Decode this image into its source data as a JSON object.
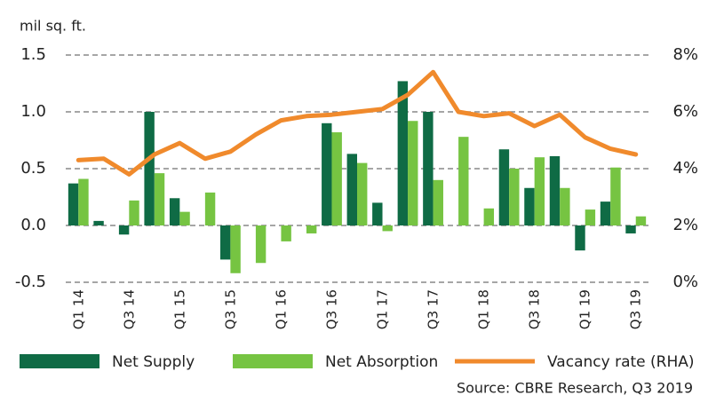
{
  "chart_data": {
    "type": "bar-line",
    "y_axis_label": "mil sq. ft.",
    "source": "Source:  CBRE Research, Q3 2019",
    "categories": [
      "Q1 14",
      null,
      "Q3 14",
      null,
      "Q1 15",
      null,
      "Q3 15",
      null,
      "Q1 16",
      null,
      "Q3 16",
      null,
      "Q1 17",
      null,
      "Q3 17",
      null,
      "Q1 18",
      null,
      "Q3 18",
      null,
      "Q1 19",
      null,
      "Q3 19"
    ],
    "series": [
      {
        "name": "Net Supply",
        "color": "#0f6b45",
        "values": [
          0.37,
          0.04,
          -0.08,
          1.0,
          0.24,
          0,
          -0.3,
          0,
          0,
          0,
          0.9,
          0.63,
          0.2,
          1.27,
          1.0,
          0,
          0,
          0.67,
          0.33,
          0.61,
          -0.22,
          0.21,
          -0.07
        ]
      },
      {
        "name": "Net Absorption",
        "color": "#76c442",
        "values": [
          0.41,
          0,
          0.22,
          0.46,
          0.12,
          0.29,
          -0.42,
          -0.33,
          -0.14,
          -0.07,
          0.82,
          0.55,
          -0.05,
          0.92,
          0.4,
          0.78,
          0.15,
          0.5,
          0.6,
          0.33,
          0.14,
          0.51,
          0.08
        ]
      },
      {
        "name": "Vacancy rate (RHA)",
        "color": "#f08a2c",
        "axis": "y2",
        "values": [
          4.3,
          4.35,
          3.8,
          4.5,
          4.9,
          4.35,
          4.6,
          5.2,
          5.7,
          5.85,
          5.9,
          6.0,
          6.1,
          6.6,
          7.4,
          6.0,
          5.85,
          5.95,
          5.5,
          5.9,
          5.1,
          4.7,
          4.5
        ]
      }
    ],
    "ylim": [
      -0.5,
      1.5
    ],
    "yticks": [
      -0.5,
      {
        "value": 0,
        "label": "0.0"
      },
      0.5,
      {
        "value": 1,
        "label": "1.0"
      },
      1.5
    ],
    "y2lim": [
      0,
      8
    ],
    "y2ticks": [
      {
        "value": 0,
        "label": "0%"
      },
      {
        "value": 2,
        "label": "2%"
      },
      {
        "value": 4,
        "label": "4%"
      },
      {
        "value": 6,
        "label": "6%"
      },
      {
        "value": 8,
        "label": "8%"
      }
    ],
    "grid": true
  }
}
